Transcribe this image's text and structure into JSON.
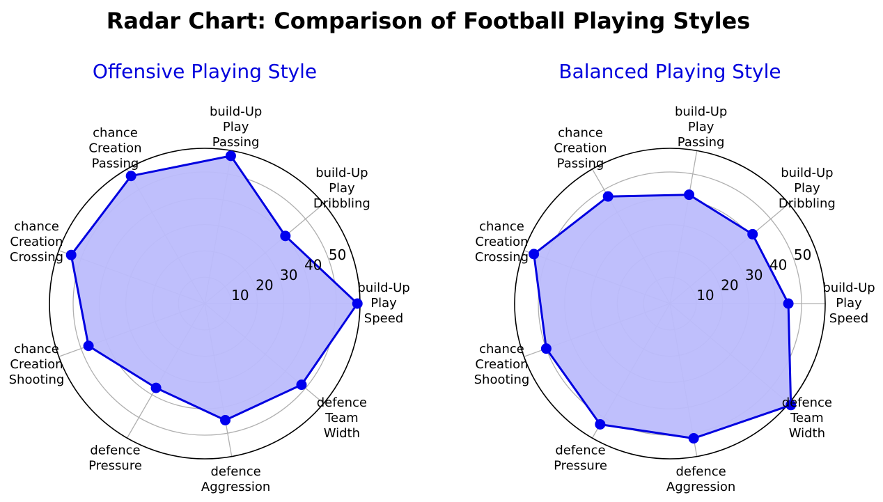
{
  "title": "Radar Chart: Comparison of Football Playing Styles",
  "colors": {
    "line": "#0000e0",
    "fill": "#bcbcfc",
    "marker": "#0000ee",
    "grid": "#b0b0b0",
    "title": "#0000dd",
    "outline": "#000000"
  },
  "chart_data": [
    {
      "type": "radar",
      "title": "Offensive Playing Style",
      "axes": [
        [
          "build-Up",
          "Play",
          "Speed"
        ],
        [
          "build-Up",
          "Play",
          "Dribbling"
        ],
        [
          "build-Up",
          "Play",
          "Passing"
        ],
        [
          "chance",
          "Creation",
          "Passing"
        ],
        [
          "chance",
          "Creation",
          "Crossing"
        ],
        [
          "chance",
          "Creation",
          "Shooting"
        ],
        [
          "defence",
          "Pressure"
        ],
        [
          "defence",
          "Aggression"
        ],
        [
          "defence",
          "Team",
          "Width"
        ]
      ],
      "values": [
        58,
        40,
        57,
        56,
        54,
        47,
        37,
        45,
        48
      ],
      "rlim": [
        0,
        59
      ],
      "rticks": [
        10,
        20,
        30,
        40,
        50
      ],
      "grid": true
    },
    {
      "type": "radar",
      "title": "Balanced Playing Style",
      "axes": [
        [
          "build-Up",
          "Play",
          "Speed"
        ],
        [
          "build-Up",
          "Play",
          "Dribbling"
        ],
        [
          "build-Up",
          "Play",
          "Passing"
        ],
        [
          "chance",
          "Creation",
          "Passing"
        ],
        [
          "chance",
          "Creation",
          "Crossing"
        ],
        [
          "chance",
          "Creation",
          "Shooting"
        ],
        [
          "defence",
          "Pressure"
        ],
        [
          "defence",
          "Aggression"
        ],
        [
          "defence",
          "Team",
          "Width"
        ]
      ],
      "values": [
        45,
        41,
        42,
        47,
        55,
        50,
        53,
        52,
        60
      ],
      "rlim": [
        0,
        59
      ],
      "rticks": [
        10,
        20,
        30,
        40,
        50
      ],
      "grid": true
    }
  ]
}
